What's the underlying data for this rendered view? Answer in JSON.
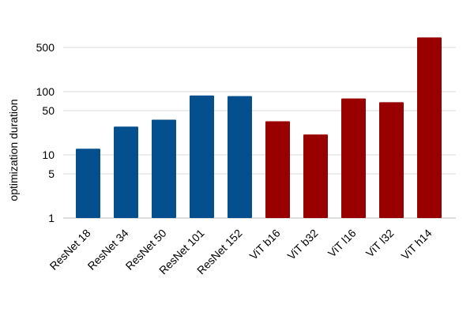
{
  "chart_data": {
    "type": "bar",
    "title": "",
    "xlabel": "",
    "ylabel": "optimization duration",
    "yscale": "log",
    "ylim": [
      1,
      1000
    ],
    "yticks": [
      {
        "value": 1,
        "label": "1"
      },
      {
        "value": 5,
        "label": "5"
      },
      {
        "value": 10,
        "label": "10"
      },
      {
        "value": 50,
        "label": "50"
      },
      {
        "value": 100,
        "label": "100"
      },
      {
        "value": 500,
        "label": "500"
      }
    ],
    "grid": true,
    "legend": "none",
    "categories": [
      "ResNet 18",
      "ResNet 34",
      "ResNet 50",
      "ResNet 101",
      "ResNet 152",
      "ViT b16",
      "ViT b32",
      "ViT l16",
      "ViT l32",
      "ViT h14"
    ],
    "values": [
      12.5,
      28,
      36,
      87,
      85,
      34,
      21,
      78,
      68,
      720
    ],
    "bar_colors": [
      "#04508f",
      "#04508f",
      "#04508f",
      "#04508f",
      "#04508f",
      "#990000",
      "#990000",
      "#990000",
      "#990000",
      "#990000"
    ]
  }
}
